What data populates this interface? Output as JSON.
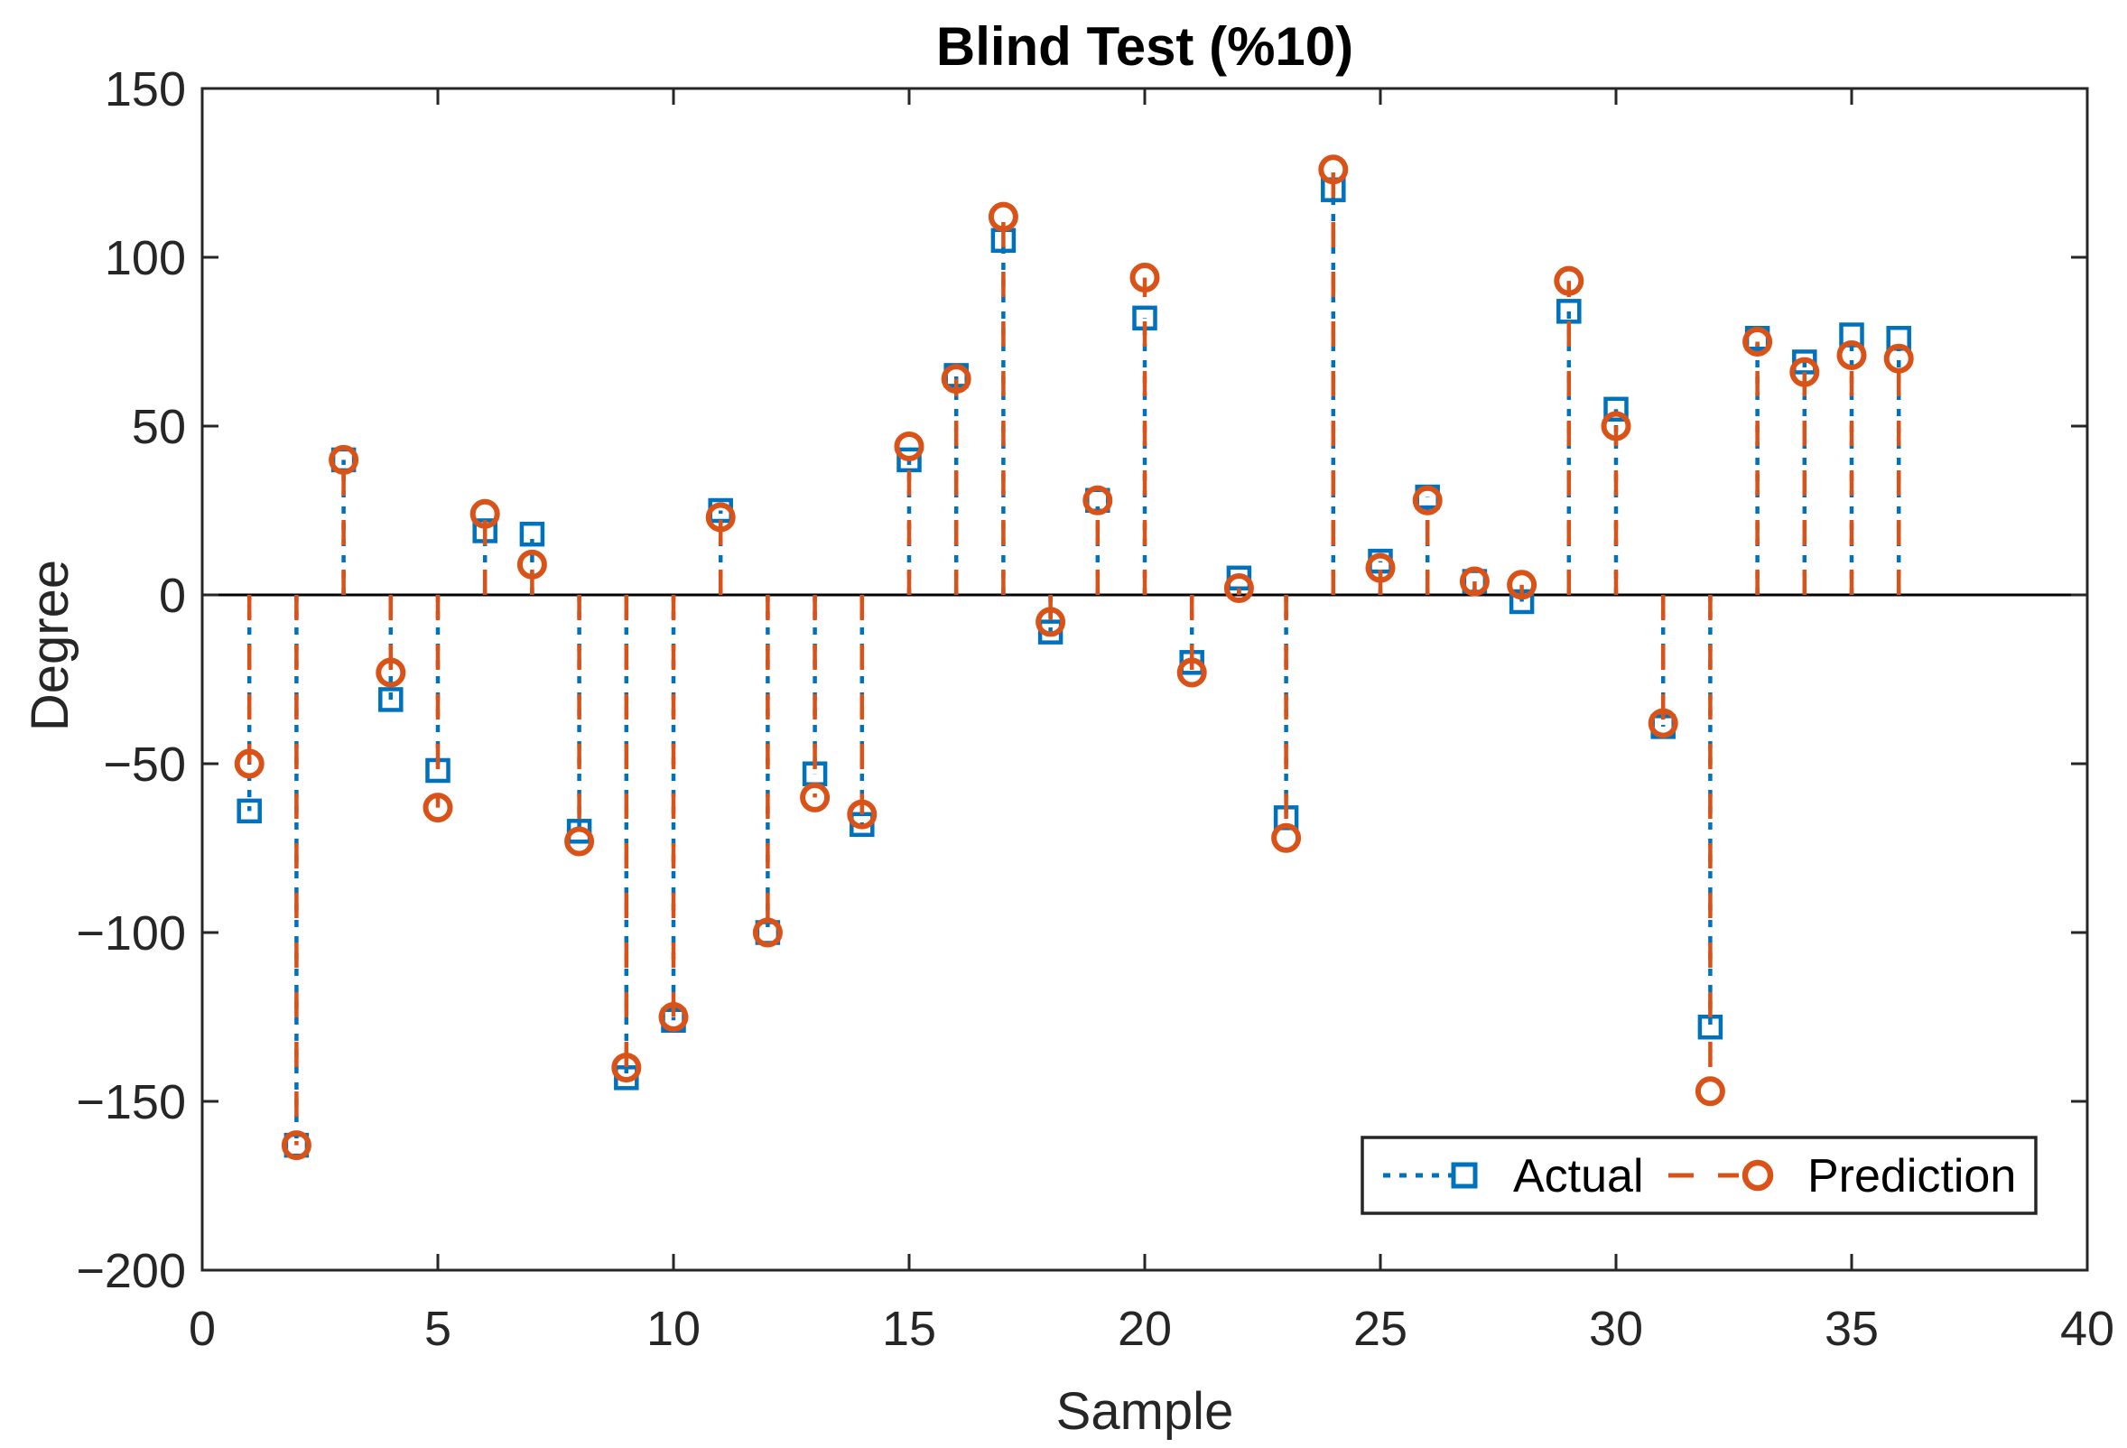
{
  "title": "Blind Test (%10)",
  "chart_data": {
    "type": "stem",
    "title": "Blind Test (%10)",
    "xlabel": "Sample",
    "ylabel": "Degree",
    "xlim": [
      0,
      40
    ],
    "ylim": [
      -200,
      150
    ],
    "xticks": [
      0,
      5,
      10,
      15,
      20,
      25,
      30,
      35,
      40
    ],
    "xtick_labels": [
      "0",
      "5",
      "10",
      "15",
      "20",
      "25",
      "30",
      "35",
      "40"
    ],
    "yticks": [
      -200,
      -150,
      -100,
      -50,
      0,
      50,
      100,
      150
    ],
    "ytick_labels": [
      "−200",
      "−150",
      "−100",
      "−50",
      "0",
      "50",
      "100",
      "150"
    ],
    "baseline": 0,
    "grid": false,
    "legend_position": "bottom-right",
    "x": [
      1,
      2,
      3,
      4,
      5,
      6,
      7,
      8,
      9,
      10,
      11,
      12,
      13,
      14,
      15,
      16,
      17,
      18,
      19,
      20,
      21,
      22,
      23,
      24,
      25,
      26,
      27,
      28,
      29,
      30,
      31,
      32,
      33,
      34,
      35,
      36
    ],
    "series": [
      {
        "name": "Actual",
        "color": "#0072BD",
        "marker": "square",
        "line_style": "dotted",
        "values": [
          -64,
          -163,
          40,
          -31,
          -52,
          19,
          18,
          -70,
          -143,
          -126,
          25,
          -100,
          -53,
          -68,
          40,
          65,
          105,
          -11,
          28,
          82,
          -20,
          5,
          -66,
          120,
          10,
          29,
          4,
          -2,
          84,
          55,
          -39,
          -128,
          76,
          69,
          77,
          76
        ]
      },
      {
        "name": "Prediction",
        "color": "#D95319",
        "marker": "circle",
        "line_style": "dashed",
        "values": [
          -50,
          -163,
          40,
          -23,
          -63,
          24,
          9,
          -73,
          -140,
          -125,
          23,
          -100,
          -60,
          -65,
          44,
          64,
          112,
          -8,
          28,
          94,
          -23,
          2,
          -72,
          126,
          8,
          28,
          4,
          3,
          93,
          50,
          -38,
          -147,
          75,
          66,
          71,
          70
        ]
      }
    ],
    "axis_color": "#262626",
    "baseline_color": "#000000"
  }
}
